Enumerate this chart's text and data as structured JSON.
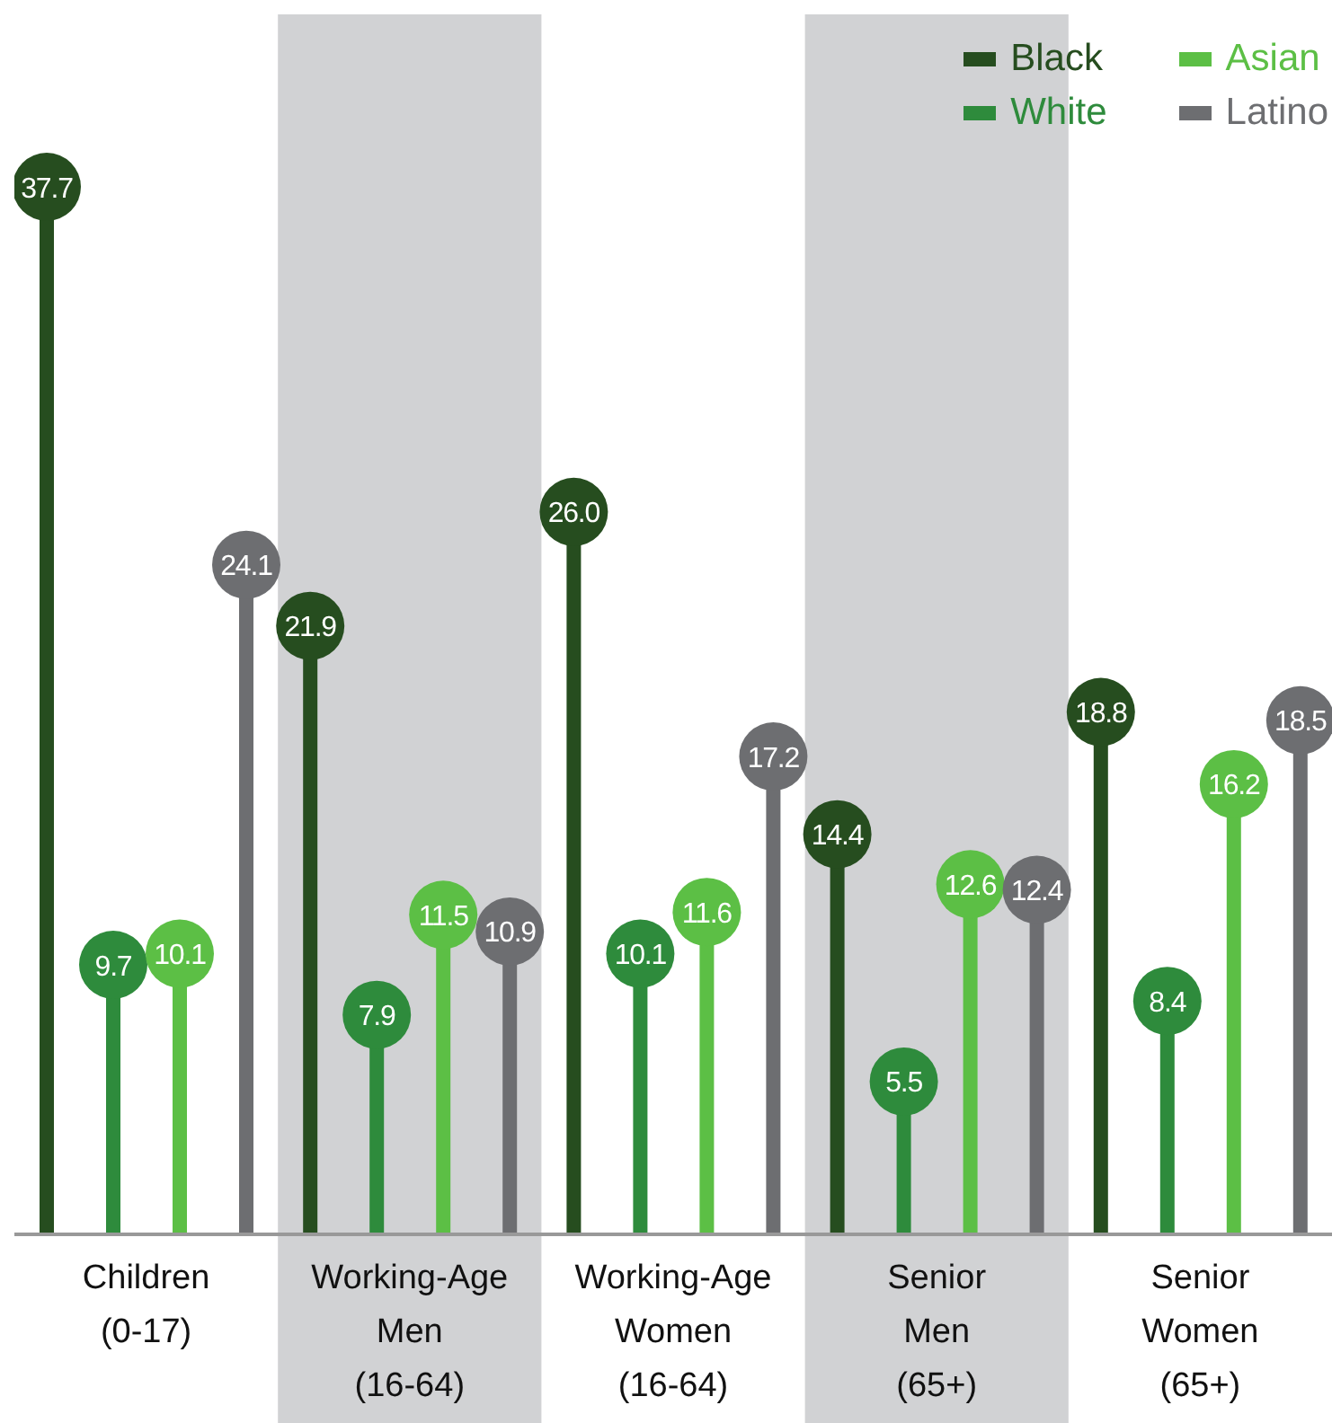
{
  "chart_data": {
    "type": "lollipop",
    "categories": [
      "Children\n(0-17)",
      "Working-Age\nMen\n(16-64)",
      "Working-Age\nWomen\n(16-64)",
      "Senior\nMen\n(65+)",
      "Senior\nWomen\n(65+)"
    ],
    "series": [
      {
        "name": "Black",
        "color": "#264d1f",
        "values": [
          37.7,
          21.9,
          26.0,
          14.4,
          18.8
        ],
        "value_labels": [
          "37.7",
          "21.9",
          "26.0",
          "14.4",
          "18.8"
        ]
      },
      {
        "name": "White",
        "color": "#2e8b3c",
        "values": [
          9.7,
          7.9,
          10.1,
          5.5,
          8.4
        ],
        "value_labels": [
          "9.7",
          "7.9",
          "10.1",
          "5.5",
          "8.4"
        ]
      },
      {
        "name": "Asian",
        "color": "#5cbf45",
        "values": [
          10.1,
          11.5,
          11.6,
          12.6,
          16.2
        ],
        "value_labels": [
          "10.1",
          "11.5",
          "11.6",
          "12.6",
          "16.2"
        ]
      },
      {
        "name": "Latino",
        "color": "#6d6e71",
        "values": [
          24.1,
          10.9,
          17.2,
          12.4,
          18.5
        ],
        "value_labels": [
          "24.1",
          "10.9",
          "17.2",
          "12.4",
          "18.5"
        ]
      }
    ],
    "bands": [
      {
        "axis": "x",
        "from": "Working-Age\nMen\n(16-64)",
        "to": "Working-Age\nMen\n(16-64)",
        "color": "#d1d2d4"
      },
      {
        "axis": "x",
        "from": "Senior\nMen\n(65+)",
        "to": "Senior\nMen\n(65+)",
        "color": "#d1d2d4"
      }
    ],
    "marker": "circle",
    "legend": "top right",
    "tick_labels": "x",
    "grid": false
  }
}
